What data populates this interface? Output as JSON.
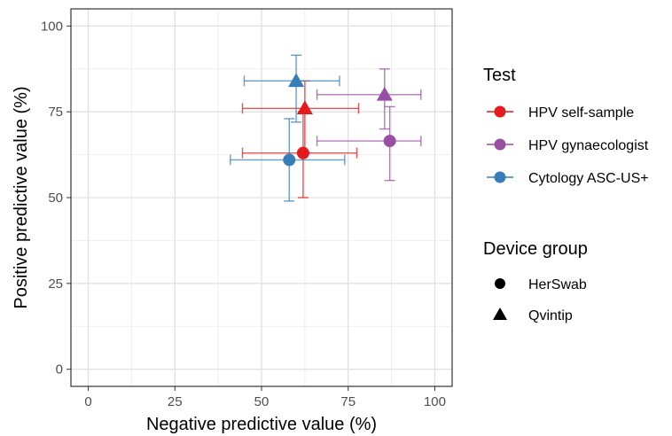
{
  "chart_data": {
    "type": "scatter",
    "xlabel": "Negative predictive value (%)",
    "ylabel": "Positive predictive value (%)",
    "xlim": [
      -5,
      105
    ],
    "ylim": [
      -5,
      105
    ],
    "xticks": [
      0,
      25,
      50,
      75,
      100
    ],
    "yticks": [
      0,
      25,
      50,
      75,
      100
    ],
    "grid": true,
    "legend_position": "right",
    "colors": {
      "HPV self-sample": "#e41a1c",
      "HPV gynaecologist": "#984ea3",
      "Cytology ASC-US+": "#377eb8"
    },
    "legend": {
      "color_title": "Test",
      "color_entries": [
        "HPV self-sample",
        "HPV gynaecologist",
        "Cytology ASC-US+"
      ],
      "shape_title": "Device group",
      "shape_entries": [
        {
          "label": "HerSwab",
          "shape": "circle"
        },
        {
          "label": "Qvintip",
          "shape": "triangle"
        }
      ]
    },
    "points": [
      {
        "test": "HPV self-sample",
        "device": "HerSwab",
        "x": 62,
        "y": 63,
        "x_low": 44.5,
        "x_high": 77.5,
        "y_low": 50,
        "y_high": 75
      },
      {
        "test": "HPV self-sample",
        "device": "Qvintip",
        "x": 62.5,
        "y": 76,
        "x_low": 44.5,
        "x_high": 78,
        "y_low": 63,
        "y_high": 84
      },
      {
        "test": "HPV gynaecologist",
        "device": "HerSwab",
        "x": 87,
        "y": 66.5,
        "x_low": 66,
        "x_high": 96,
        "y_low": 55,
        "y_high": 76.5
      },
      {
        "test": "HPV gynaecologist",
        "device": "Qvintip",
        "x": 85.5,
        "y": 80,
        "x_low": 66,
        "x_high": 96,
        "y_low": 70,
        "y_high": 87.5
      },
      {
        "test": "Cytology ASC-US+",
        "device": "HerSwab",
        "x": 58,
        "y": 61,
        "x_low": 41,
        "x_high": 74,
        "y_low": 49,
        "y_high": 73
      },
      {
        "test": "Cytology ASC-US+",
        "device": "Qvintip",
        "x": 60,
        "y": 84,
        "x_low": 45,
        "x_high": 72.5,
        "y_low": 72,
        "y_high": 91.5
      }
    ]
  }
}
